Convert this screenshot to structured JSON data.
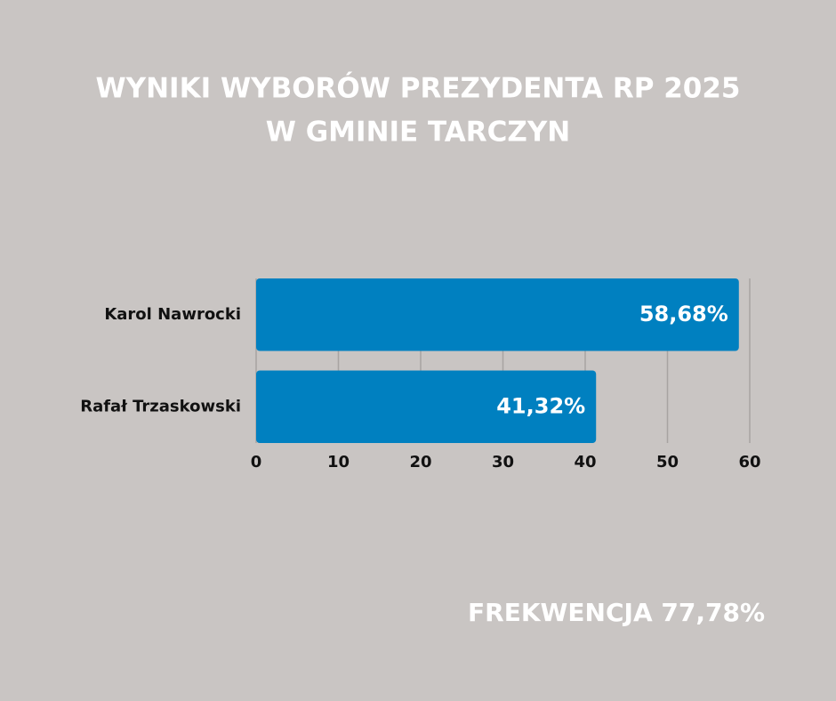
{
  "chart_data": {
    "type": "hbar",
    "title": [
      "WYNIKI WYBORÓW PREZYDENTA RP 2025",
      "W GMINIE TARCZYN"
    ],
    "categories": [
      "Karol Nawrocki",
      "Rafał Trzaskowski"
    ],
    "values": [
      58.68,
      41.32
    ],
    "value_labels": [
      "58,68%",
      "41,32%"
    ],
    "color": "#0080c0",
    "xlim": [
      0,
      60
    ],
    "xticks": [
      0,
      10,
      20,
      30,
      40,
      50,
      60
    ],
    "grid": true,
    "annotation": "FREKWENCJA 77,78%"
  }
}
